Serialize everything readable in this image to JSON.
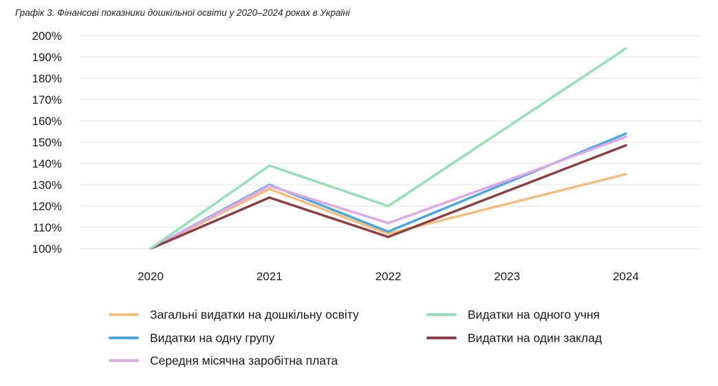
{
  "caption": "Графік 3. Фінансові показники дошкільної освіти у 2020–2024 роках в Україні",
  "chart_data": {
    "type": "line",
    "x": [
      "2020",
      "2021",
      "2022",
      "2023",
      "2024"
    ],
    "yticks": [
      "100%",
      "110%",
      "120%",
      "130%",
      "140%",
      "150%",
      "160%",
      "170%",
      "180%",
      "190%",
      "200%"
    ],
    "ylim": [
      100,
      200
    ],
    "grid": true,
    "legend": "bottom",
    "series": [
      {
        "name": "Загальні видатки на дошкільну освіту",
        "color": "#f5bd7d",
        "values": [
          100,
          128,
          107,
          121,
          135
        ]
      },
      {
        "name": "Видатки на одного учня",
        "color": "#97dfb6",
        "values": [
          100,
          139,
          120,
          157,
          194
        ]
      },
      {
        "name": "Видатки на одну групу",
        "color": "#4aa7e0",
        "values": [
          100,
          130,
          108,
          131,
          154
        ]
      },
      {
        "name": "Видатки на один заклад",
        "color": "#8b3f42",
        "values": [
          100,
          124,
          105.5,
          127,
          148.5
        ]
      },
      {
        "name": "Середня місячна заробітна плата",
        "color": "#dfa8e6",
        "values": [
          100,
          129.5,
          112,
          132,
          152.5
        ]
      }
    ]
  }
}
